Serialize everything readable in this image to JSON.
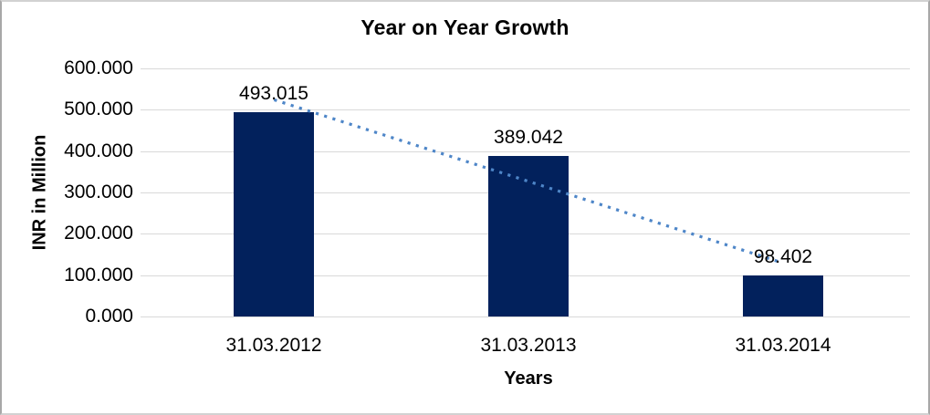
{
  "chart_data": {
    "type": "bar",
    "title": "Year on Year Growth",
    "xlabel": "Years",
    "ylabel": "INR in Million",
    "categories": [
      "31.03.2012",
      "31.03.2013",
      "31.03.2014"
    ],
    "values": [
      493.015,
      389.042,
      98.402
    ],
    "data_labels": [
      "493.015",
      "389.042",
      "98.402"
    ],
    "ytick_values": [
      0,
      100,
      200,
      300,
      400,
      500,
      600
    ],
    "ytick_labels": [
      "0.000",
      "100.000",
      "200.000",
      "300.000",
      "400.000",
      "500.000",
      "600.000"
    ],
    "ylim": [
      0,
      600
    ],
    "grid": true,
    "legend": "none",
    "trendline": {
      "type": "linear",
      "style": "dotted"
    },
    "colors": {
      "bar": "#02215C",
      "trendline": "#4E86C8",
      "gridline": "#D9D9D9",
      "text": "#000000",
      "background": "#FFFFFF",
      "frame_border": "#ABABAB"
    }
  }
}
